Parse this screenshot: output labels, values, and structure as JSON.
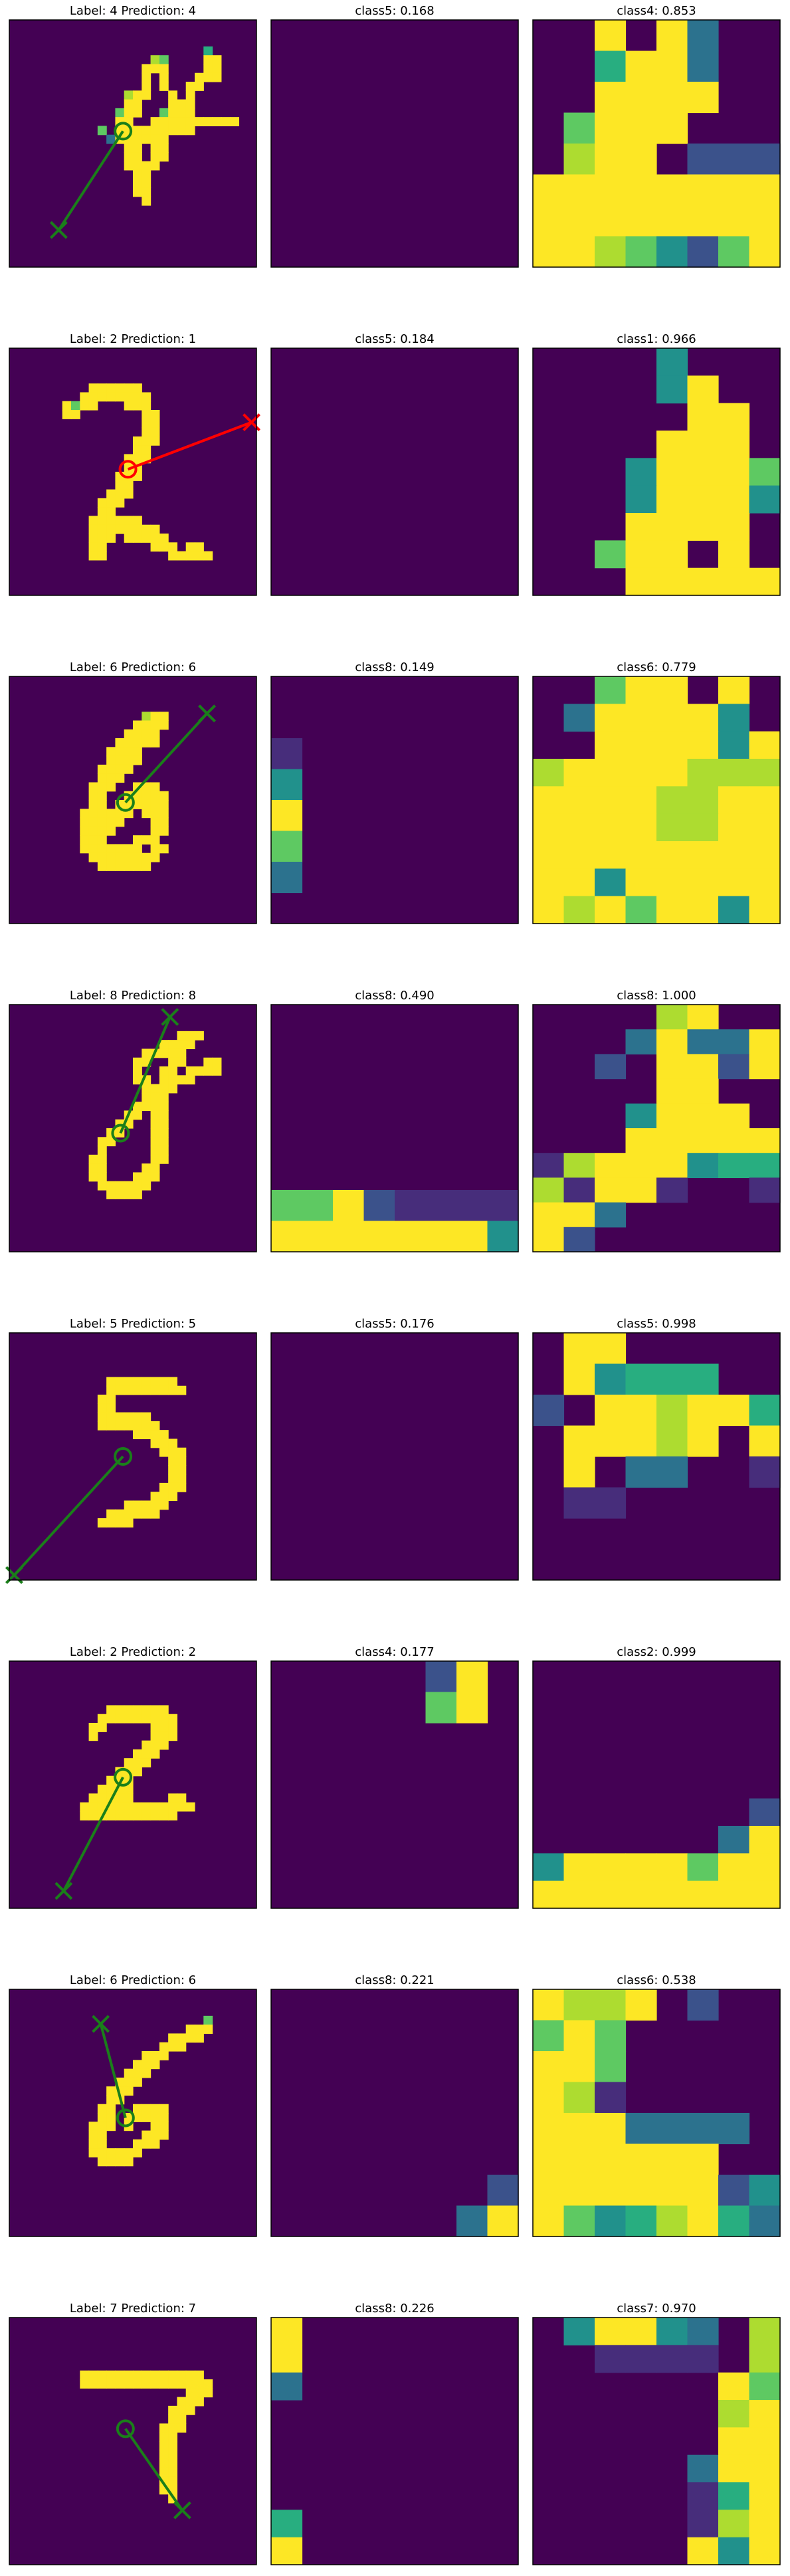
{
  "colors": {
    "background_cell": "#440154",
    "ink_full": "#fde725",
    "correct_marker": "#1a7f1a",
    "wrong_marker": "#ff0000",
    "viridis": [
      "#440154",
      "#472d7b",
      "#3b528b",
      "#2c728e",
      "#21918c",
      "#28ae80",
      "#5ec962",
      "#addc30",
      "#fde725"
    ]
  },
  "chart_data": [
    {
      "type": "heatmap",
      "panel": "input",
      "title": "Label: 4 Prediction: 4",
      "label": 4,
      "prediction": 4,
      "correct": true,
      "image_rows": [
        "............................",
        "............................",
        "............................",
        "......................5.....",
        "................76....88....",
        "...............888....88....",
        "...............8.8...888....",
        "...............8.8..88......",
        ".............788..8.8.......",
        ".............88...888.......",
        "............688..6888.......",
        "............88..8888888888..",
        "..........6.888888888.......",
        "...........3888888..........",
        ".............88.88..........",
        ".............88.88..........",
        ".............8888...........",
        "..............88............",
        "..............88............",
        "..............88............",
        "...............8............",
        "............................",
        "............................",
        "............................",
        "............................",
        "............................",
        "............................",
        "............................"
      ],
      "marker_circle": [
        0.46,
        0.45
      ],
      "marker_x": [
        0.2,
        0.85
      ]
    },
    {
      "type": "heatmap",
      "panel": "attribution",
      "title": "class5: 0.168",
      "grid": [
        "........",
        "........",
        "........",
        "........",
        "........",
        "........",
        "........",
        "........"
      ]
    },
    {
      "type": "heatmap",
      "panel": "class-evidence",
      "title": "class4: 0.853",
      "grid": [
        "..8.83..",
        "..5883..",
        "..8888..",
        ".6888...",
        ".788.222",
        "88888888",
        "88888888",
        "88764268"
      ]
    },
    {
      "type": "heatmap",
      "panel": "input",
      "title": "Label: 2 Prediction: 1",
      "label": 2,
      "prediction": 1,
      "correct": false,
      "image_rows": [
        "............................",
        "............................",
        "............................",
        "............................",
        ".........888888.............",
        "........88888888............",
        "......8688...888............",
        "......88.......88...........",
        "...............88...........",
        "...............88...........",
        "..............888...........",
        "..............88............",
        ".............888............",
        ".............88.............",
        "............888.............",
        "............88..............",
        "...........888..............",
        "..........888...............",
        "..........88................",
        ".........888888.............",
        ".........88888888...........",
        ".........888.88888..........",
        ".........88.....888.88......",
        ".........88.......88888.....",
        "..........................",
        "............................",
        "............................",
        "............................"
      ],
      "marker_circle": [
        0.48,
        0.49
      ],
      "marker_x": [
        0.98,
        0.3
      ]
    },
    {
      "type": "heatmap",
      "panel": "attribution",
      "title": "class5: 0.184",
      "grid": [
        "........",
        "........",
        "........",
        "........",
        "........",
        "........",
        "........",
        "........"
      ]
    },
    {
      "type": "heatmap",
      "panel": "class-evidence",
      "title": "class1: 0.966",
      "grid": [
        "....4...",
        "....48..",
        ".....88.",
        "....888.",
        "...48886",
        "...48884",
        "...8888.",
        "..688.8.",
        "...88888"
      ]
    },
    {
      "type": "heatmap",
      "panel": "input",
      "title": "Label: 6 Prediction: 6",
      "label": 6,
      "prediction": 6,
      "correct": true,
      "image_rows": [
        "............................",
        "............................",
        "............................",
        "............................",
        "...............788..........",
        "..............8888..........",
        ".............8888...........",
        "............88888...........",
        "...........8888.............",
        "...........8888.............",
        "..........8888..............",
        "..........888...............",
        ".........888..888...........",
        ".........88..88888..........",
        ".........88.888888..........",
        "........888888.888..........",
        "........88888...88..........",
        "........8888....88..........",
        "........888...888...........",
        "........8888888.88..........",
        ".........88888888...........",
        "..........888888............",
        "............................",
        "............................",
        "............................",
        "............................",
        "............................",
        "............................"
      ],
      "marker_circle": [
        0.47,
        0.51
      ],
      "marker_x": [
        0.8,
        0.15
      ]
    },
    {
      "type": "heatmap",
      "panel": "attribution",
      "title": "class8: 0.149",
      "grid": [
        "........",
        "........",
        "1.......",
        "4.......",
        "8.......",
        "6.......",
        "3.......",
        "........"
      ]
    },
    {
      "type": "heatmap",
      "panel": "class-evidence",
      "title": "class6: 0.779",
      "grid": [
        "..688.8.",
        ".388884.",
        "..888848",
        "78888777",
        "88887788",
        "88887788",
        "88888888",
        "88488888",
        "87868848"
      ]
    },
    {
      "type": "heatmap",
      "panel": "input",
      "title": "Label: 8 Prediction: 8",
      "label": 8,
      "prediction": 8,
      "correct": true,
      "image_rows": [
        "............................",
        "............................",
        "............................",
        "...................888.......",
        ".................8888.......",
        "...............88888........",
        "..............88..88..88....",
        "..............8..88.8888....",
        "..............88.8888.......",
        "...............8888.........",
        "...............888..........",
        "..............8888..........",
        ".............88.88..........",
        "............88..88..........",
        "...........88...88..........",
        "..........88....88..........",
        "..........8.....88..........",
        ".........88.....88..........",
        ".........88....88...........",
        ".........88...888...........",
        "..........888888............",
        "...........8888.............",
        "............................",
        "............................",
        "............................",
        "............................",
        "............................",
        "............................"
      ],
      "marker_circle": [
        0.45,
        0.52
      ],
      "marker_x": [
        0.65,
        0.05
      ]
    },
    {
      "type": "heatmap",
      "panel": "attribution",
      "title": "class8: 0.490",
      "grid": [
        "........",
        "........",
        "........",
        "........",
        "........",
        "........",
        "66821111",
        "88888884"
      ]
    },
    {
      "type": "heatmap",
      "panel": "class-evidence",
      "title": "class8: 1.000",
      "grid": [
        "....78..",
        "...38338",
        "..2.8828",
        "....88..",
        "...4888.",
        "...88888",
        "17888455",
        "71881..1",
        "883.....",
        "82......"
      ]
    },
    {
      "type": "heatmap",
      "panel": "input",
      "title": "Label: 5 Prediction: 5",
      "label": 5,
      "prediction": 5,
      "correct": true,
      "image_rows": [
        "............................",
        "............................",
        "............................",
        "............................",
        "............................",
        "...........88888888.........",
        "...........888888888........",
        "..........88................",
        "..........88................",
        "..........888888............",
        "..........8888888...........",
        "..............8888..........",
        "................888.........",
        ".................888........",
        "..................88........",
        "..................88........",
        "..................88........",
        ".................888........",
        "................888.........",
        ".............88888..........",
        "...........888888...........",
        "..........8888..............",
        "............................",
        "............................",
        "............................",
        "............................",
        "............................",
        "............................"
      ],
      "marker_circle": [
        0.46,
        0.5
      ],
      "marker_x": [
        0.02,
        0.98
      ]
    },
    {
      "type": "heatmap",
      "panel": "attribution",
      "title": "class5: 0.176",
      "grid": [
        "........",
        "........",
        "........",
        "........",
        "........",
        "........",
        "........",
        "........"
      ]
    },
    {
      "type": "heatmap",
      "panel": "class-evidence",
      "title": "class5: 0.998",
      "grid": [
        ".88.....",
        ".84555..",
        "2.887885",
        ".88878.8",
        ".8.33..1",
        ".11.....",
        "........",
        "........"
      ]
    },
    {
      "type": "heatmap",
      "panel": "input",
      "title": "Label: 2 Prediction: 2",
      "label": 2,
      "prediction": 2,
      "correct": true,
      "image_rows": [
        "............................",
        "............................",
        "............................",
        "............................",
        "............................",
        "...........8888888..........",
        "..........888888888.........",
        ".........88.....888.........",
        ".........8......888.........",
        "...............888..........",
        "..............888...........",
        ".............888............",
        "............888.............",
        "...........888..............",
        "..........8888..............",
        ".........88888....88........",
        "........8888888888888.......",
        "........88888888888.........",
        "............................",
        "............................",
        "............................",
        "............................",
        "............................",
        "............................",
        "............................",
        "............................",
        "............................",
        "............................"
      ],
      "marker_circle": [
        0.46,
        0.47
      ],
      "marker_x": [
        0.22,
        0.93
      ]
    },
    {
      "type": "heatmap",
      "panel": "attribution",
      "title": "class4: 0.177",
      "grid": [
        ".....28.",
        ".....68.",
        "........",
        "........",
        "........",
        "........",
        "........",
        "........"
      ]
    },
    {
      "type": "heatmap",
      "panel": "class-evidence",
      "title": "class2: 0.999",
      "grid": [
        "........",
        "........",
        "........",
        "........",
        "........",
        ".......2",
        "......38",
        "48888688",
        "88888888"
      ]
    },
    {
      "type": "heatmap",
      "panel": "input",
      "title": "Label: 6 Prediction: 6",
      "label": 6,
      "prediction": 6,
      "correct": true,
      "image_rows": [
        "............................",
        "............................",
        "............................",
        "......................6.....",
        "....................888.....",
        "..................8888......",
        ".................888........",
        "...............888..........",
        "..............888...........",
        ".............888............",
        "............888.............",
        "...........888..............",
        "...........88...............",
        "..........88..8888..........",
        "..........88.88888..........",
        ".........888.8..88..........",
        ".........88....888..........",
        ".........88...888...........",
        ".........888888.............",
        "..........8888..............",
        "............................",
        "............................",
        "............................",
        "............................",
        "............................",
        "............................",
        "............................",
        "............................"
      ],
      "marker_circle": [
        0.47,
        0.52
      ],
      "marker_x": [
        0.37,
        0.14
      ]
    },
    {
      "type": "heatmap",
      "panel": "attribution",
      "title": "class8: 0.221",
      "grid": [
        "........",
        "........",
        "........",
        "........",
        "........",
        "........",
        ".......2",
        "......38"
      ]
    },
    {
      "type": "heatmap",
      "panel": "class-evidence",
      "title": "class6: 0.538",
      "grid": [
        "8778.2..",
        "686.....",
        "886.....",
        "871.....",
        "8883333.",
        "888888..",
        "88888824",
        "86457853"
      ]
    },
    {
      "type": "heatmap",
      "panel": "input",
      "title": "Label: 7 Prediction: 7",
      "label": 7,
      "prediction": 7,
      "correct": true,
      "image_rows": [
        "............................",
        "............................",
        "............................",
        "............................",
        "............................",
        "............................",
        "........88888888888888......",
        "........888888888888888.....",
        "....................888.....",
        "...................888......",
        "..................888.......",
        "..................88........",
        ".................888........",
        ".................88.........",
        ".................88.........",
        ".................88.........",
        ".................88.........",
        ".................88.........",
        ".................88.........",
        ".................88.........",
        "..................8.........",
        "............................",
        "............................",
        "............................",
        "............................",
        "............................",
        "............................",
        "............................"
      ],
      "marker_circle": [
        0.47,
        0.45
      ],
      "marker_x": [
        0.7,
        0.78
      ]
    },
    {
      "type": "heatmap",
      "panel": "attribution",
      "title": "class8: 0.226",
      "grid": [
        "8.......",
        "8.......",
        "3.......",
        "........",
        "........",
        "........",
        "........",
        "5.......",
        "8......."
      ]
    },
    {
      "type": "heatmap",
      "panel": "class-evidence",
      "title": "class7: 0.970",
      "grid": [
        ".48843.7",
        "..1111.7",
        "......86",
        "......78",
        "......88",
        ".....388",
        ".....158",
        ".....178",
        ".....848"
      ]
    }
  ]
}
